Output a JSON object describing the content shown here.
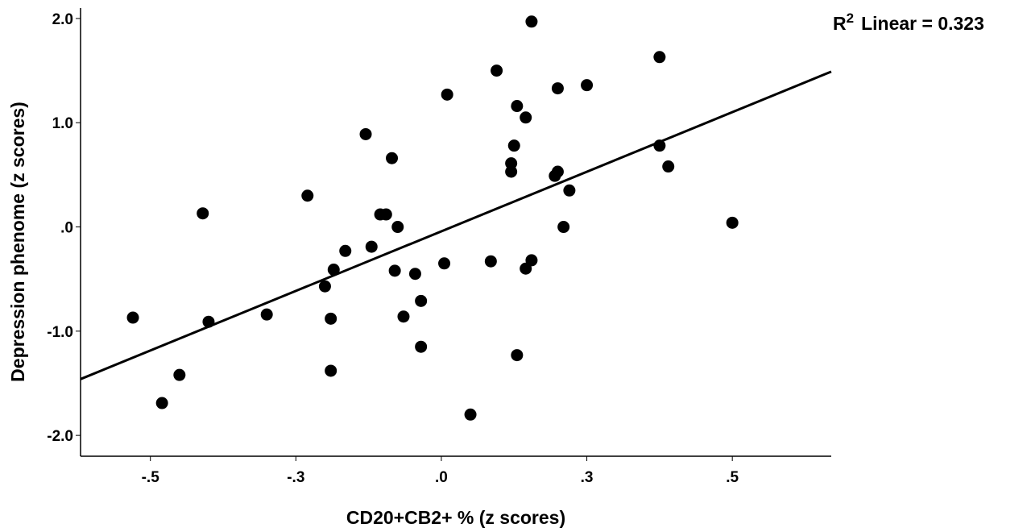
{
  "chart_data": {
    "type": "scatter",
    "xlabel": "CD20+CB2+ % (z scores)",
    "ylabel": "Depression phenome (z scores)",
    "xlim": [
      -0.62,
      0.67
    ],
    "ylim": [
      -2.2,
      2.1
    ],
    "x_ticks": [
      {
        "value": -0.5,
        "label": "-.5"
      },
      {
        "value": -0.25,
        "label": "-.3"
      },
      {
        "value": 0.0,
        "label": ".0"
      },
      {
        "value": 0.25,
        "label": ".3"
      },
      {
        "value": 0.5,
        "label": ".5"
      }
    ],
    "y_ticks": [
      {
        "value": 2.0,
        "label": "2.0"
      },
      {
        "value": 1.0,
        "label": "1.0"
      },
      {
        "value": 0.0,
        "label": ".0"
      },
      {
        "value": -1.0,
        "label": "-1.0"
      },
      {
        "value": -2.0,
        "label": "-2.0"
      }
    ],
    "fit_line": {
      "r2_label": "Linear = 0.323",
      "r2_prefix": "R",
      "r2_sup": "2",
      "x": [
        -0.62,
        0.67
      ],
      "y": [
        -1.46,
        1.49
      ]
    },
    "points": [
      {
        "x": -0.53,
        "y": -0.87
      },
      {
        "x": -0.48,
        "y": -1.69
      },
      {
        "x": -0.45,
        "y": -1.42
      },
      {
        "x": -0.41,
        "y": 0.13
      },
      {
        "x": -0.4,
        "y": -0.91
      },
      {
        "x": -0.3,
        "y": -0.84
      },
      {
        "x": -0.23,
        "y": 0.3
      },
      {
        "x": -0.2,
        "y": -0.57
      },
      {
        "x": -0.19,
        "y": -1.38
      },
      {
        "x": -0.19,
        "y": -0.88
      },
      {
        "x": -0.185,
        "y": -0.41
      },
      {
        "x": -0.165,
        "y": -0.23
      },
      {
        "x": -0.13,
        "y": 0.89
      },
      {
        "x": -0.12,
        "y": -0.19
      },
      {
        "x": -0.105,
        "y": 0.12
      },
      {
        "x": -0.095,
        "y": 0.12
      },
      {
        "x": -0.085,
        "y": 0.66
      },
      {
        "x": -0.08,
        "y": -0.42
      },
      {
        "x": -0.075,
        "y": 0.0
      },
      {
        "x": -0.065,
        "y": -0.86
      },
      {
        "x": -0.045,
        "y": -0.45
      },
      {
        "x": -0.035,
        "y": -1.15
      },
      {
        "x": -0.035,
        "y": -0.71
      },
      {
        "x": 0.005,
        "y": -0.35
      },
      {
        "x": 0.01,
        "y": 1.27
      },
      {
        "x": 0.05,
        "y": -1.8
      },
      {
        "x": 0.085,
        "y": -0.33
      },
      {
        "x": 0.095,
        "y": 1.5
      },
      {
        "x": 0.12,
        "y": 0.61
      },
      {
        "x": 0.12,
        "y": 0.53
      },
      {
        "x": 0.125,
        "y": 0.78
      },
      {
        "x": 0.13,
        "y": 1.16
      },
      {
        "x": 0.13,
        "y": -1.23
      },
      {
        "x": 0.145,
        "y": 1.05
      },
      {
        "x": 0.145,
        "y": -0.4
      },
      {
        "x": 0.155,
        "y": -0.32
      },
      {
        "x": 0.155,
        "y": 1.97
      },
      {
        "x": 0.195,
        "y": 0.49
      },
      {
        "x": 0.2,
        "y": 0.53
      },
      {
        "x": 0.2,
        "y": 1.33
      },
      {
        "x": 0.21,
        "y": 0.0
      },
      {
        "x": 0.22,
        "y": 0.35
      },
      {
        "x": 0.25,
        "y": 1.36
      },
      {
        "x": 0.375,
        "y": 1.63
      },
      {
        "x": 0.375,
        "y": 0.78
      },
      {
        "x": 0.39,
        "y": 0.58
      },
      {
        "x": 0.5,
        "y": 0.04
      }
    ]
  }
}
